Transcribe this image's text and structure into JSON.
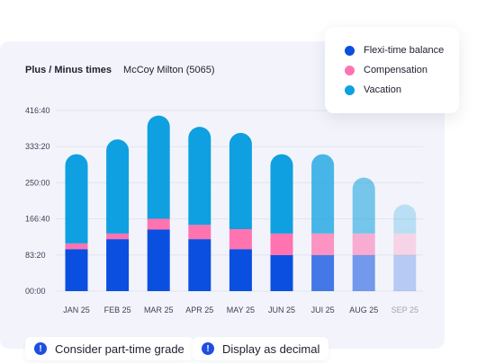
{
  "header": {
    "title": "Plus / Minus times",
    "employee": "McCoy Milton (5065)"
  },
  "legend": [
    {
      "label": "Flexi-time balance",
      "color": "#0a4fe0"
    },
    {
      "label": "Compensation",
      "color": "#ff73b0"
    },
    {
      "label": "Vacation",
      "color": "#0ea0e0"
    }
  ],
  "options": [
    {
      "label": "Consider part-time grade",
      "icon": "info-icon"
    },
    {
      "label": "Display as decimal",
      "icon": "info-icon"
    }
  ],
  "chart_data": {
    "type": "bar",
    "stacked": true,
    "categories": [
      "JAN 25",
      "FEB 25",
      "MAR 25",
      "APR 25",
      "MAY 25",
      "JUN 25",
      "JUI 25",
      "AUG 25",
      "SEP 25"
    ],
    "yticks": [
      "00:00",
      "83:20",
      "166:40",
      "250:00",
      "333:20",
      "416:40"
    ],
    "ylim": [
      0,
      416.67
    ],
    "series": [
      {
        "name": "Flexi-time balance",
        "color": "#0a4fe0",
        "values": [
          97,
          120,
          142,
          120,
          97,
          83,
          83,
          83,
          83
        ]
      },
      {
        "name": "Compensation",
        "color": "#ff73b0",
        "values": [
          13,
          13,
          25,
          33,
          46,
          50,
          50,
          50,
          50
        ]
      },
      {
        "name": "Vacation",
        "color": "#0ea0e0",
        "values": [
          206,
          217,
          238,
          226,
          222,
          183,
          183,
          129,
          67
        ]
      }
    ],
    "bar_opacity": [
      1,
      1,
      1,
      1,
      1,
      1,
      0.75,
      0.55,
      0.25
    ],
    "grid": true
  }
}
